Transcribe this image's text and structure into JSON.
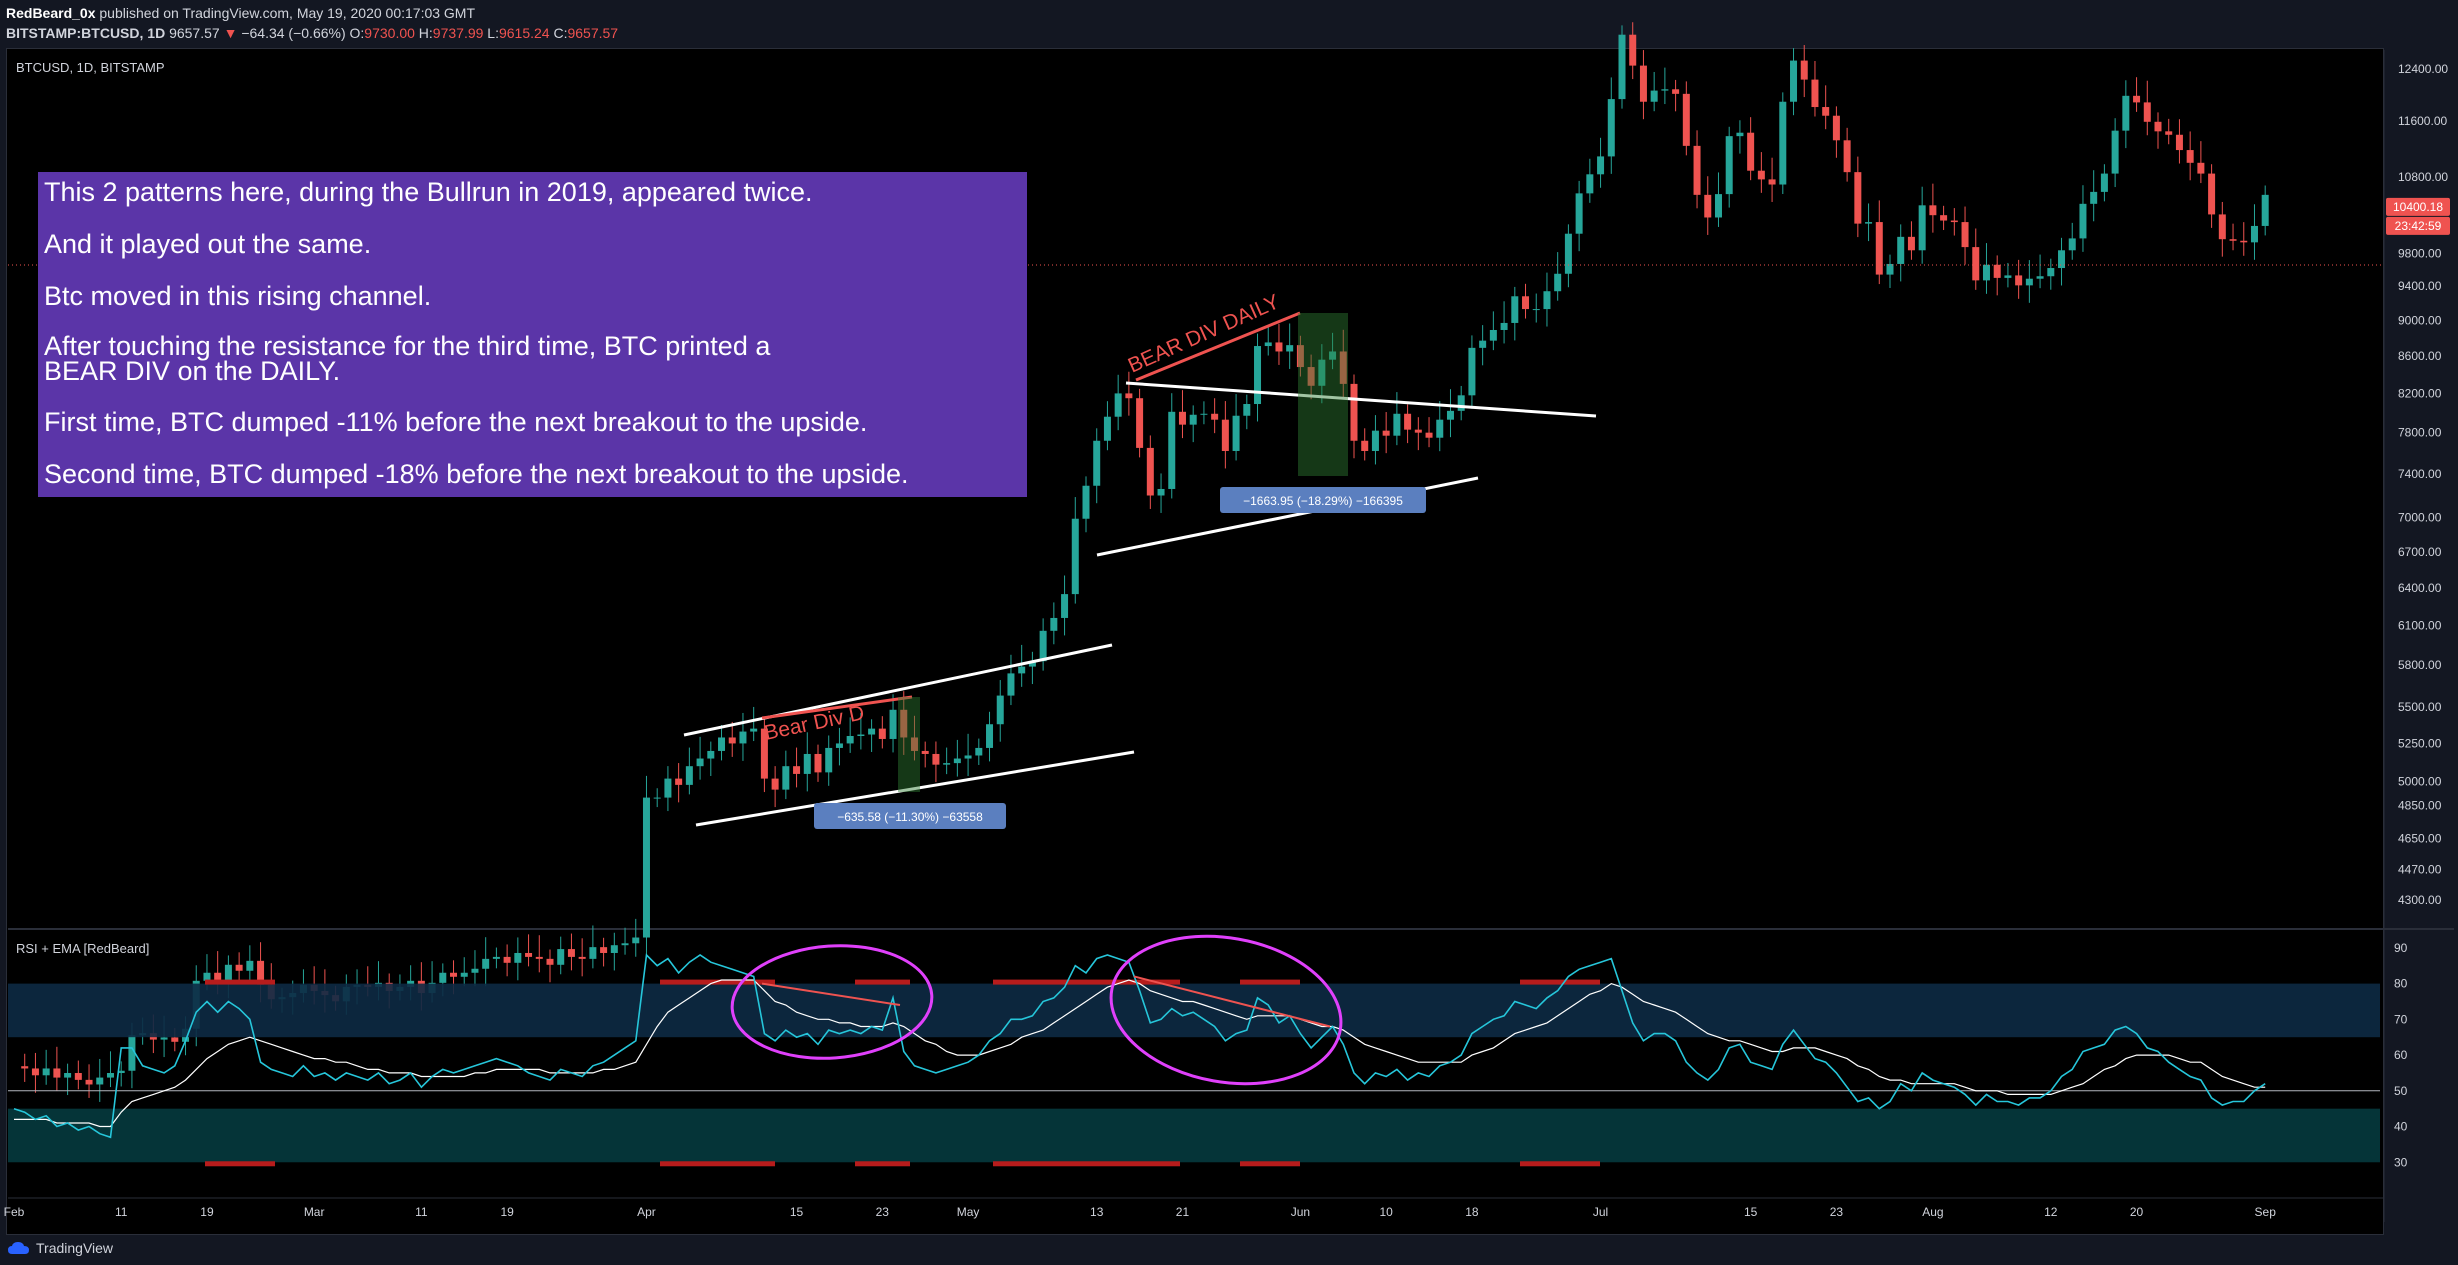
{
  "header": {
    "author": "RedBeard_0x",
    "published_text": "published on TradingView.com, May 19, 2020 00:17:03 GMT",
    "symbol": "BITSTAMP:BTCUSD, 1D",
    "last": "9657.57",
    "change": "−64.34 (−0.66%)",
    "o_label": "O:",
    "o": "9730.00",
    "h_label": "H:",
    "h": "9737.99",
    "l_label": "L:",
    "l": "9615.24",
    "c_label": "C:",
    "c": "9657.57"
  },
  "pane_labels": {
    "main": "BTCUSD, 1D, BITSTAMP",
    "rsi": "RSI + EMA [RedBeard]"
  },
  "note_lines": [
    "This 2 patterns here, during the Bullrun in 2019, appeared twice.",
    "And it played out the same.",
    "Btc moved in this rising channel.",
    "After touching the resistance for the third time, BTC printed a\nBEAR DIV on the DAILY.",
    "First time, BTC dumped -11% before the next breakout to the upside.",
    "Second time, BTC dumped -18% before the next breakout to the upside."
  ],
  "annotations": {
    "bear_div_1": "Bear Div D",
    "bear_div_2": "BEAR DIV DAILY",
    "measure_1": "−635.58 (−11.30%) −63558",
    "measure_2": "−1663.95 (−18.29%) −166395"
  },
  "price_badges": {
    "current_price": "10400.18",
    "countdown": "23:42:59"
  },
  "footer": {
    "brand": "TradingView"
  },
  "colors": {
    "up": "#26a69a",
    "down": "#ef5350",
    "note_bg": "#5b35a8",
    "rsi_line": "#26c6da",
    "ema_line": "#ffffff",
    "highlight": "#e040fb",
    "measure_bg": "#5b7fbf"
  },
  "chart_data": [
    {
      "type": "candlestick",
      "title": "BTCUSD, 1D, BITSTAMP",
      "y_scale": "log",
      "ylim": [
        4150,
        12700
      ],
      "y_ticks": [
        12400,
        11600,
        10800,
        10400,
        9800,
        9400,
        9000,
        8600,
        8200,
        7800,
        7400,
        7000,
        6700,
        6400,
        6100,
        5800,
        5500,
        5250,
        5000,
        4850,
        4650,
        4470,
        4300
      ],
      "x_tick_labels": [
        "Feb",
        "11",
        "19",
        "Mar",
        "11",
        "19",
        "Apr",
        "15",
        "23",
        "May",
        "13",
        "21",
        "Jun",
        "10",
        "18",
        "Jul",
        "15",
        "23",
        "Aug",
        "12",
        "20",
        "Sep"
      ],
      "x_tick_days": [
        0,
        10,
        18,
        28,
        38,
        46,
        59,
        73,
        81,
        89,
        101,
        109,
        120,
        128,
        136,
        148,
        162,
        170,
        179,
        190,
        198,
        210
      ],
      "days": 221,
      "closes": [
        3480,
        3470,
        3440,
        3470,
        3430,
        3450,
        3420,
        3400,
        3430,
        3450,
        3460,
        3620,
        3630,
        3600,
        3610,
        3590,
        3650,
        3880,
        3920,
        3880,
        3960,
        3930,
        3980,
        3860,
        3790,
        3800,
        3820,
        3860,
        3830,
        3810,
        3780,
        3850,
        3860,
        3850,
        3870,
        3830,
        3850,
        3880,
        3820,
        3870,
        3920,
        3900,
        3920,
        3940,
        3990,
        4000,
        3970,
        4020,
        4000,
        3990,
        3960,
        4040,
        4000,
        3990,
        4050,
        4020,
        4060,
        4070,
        4100,
        4900,
        4900,
        5020,
        4980,
        5100,
        5150,
        5200,
        5290,
        5250,
        5330,
        5350,
        5020,
        4950,
        5100,
        5050,
        5180,
        5060,
        5220,
        5250,
        5300,
        5310,
        5350,
        5280,
        5480,
        5290,
        5200,
        5180,
        5110,
        5120,
        5150,
        5170,
        5220,
        5380,
        5580,
        5740,
        5790,
        5830,
        6060,
        6160,
        6350,
        6990,
        7290,
        7720,
        7960,
        8200,
        8150,
        7650,
        7200,
        7260,
        8010,
        7880,
        7980,
        7990,
        7930,
        7620,
        7970,
        8090,
        8710,
        8750,
        8650,
        8720,
        8480,
        8280,
        8560,
        8650,
        8300,
        7720,
        7620,
        7820,
        7770,
        7990,
        7830,
        7800,
        7750,
        7930,
        8020,
        8180,
        8690,
        8770,
        8890,
        8970,
        9280,
        9130,
        9130,
        9340,
        9550,
        10050,
        10580,
        10840,
        11090,
        11930,
        12950,
        12450,
        11890,
        12060,
        12080,
        12010,
        11240,
        10560,
        10260,
        10570,
        11380,
        11430,
        10890,
        10770,
        10700,
        11890,
        12530,
        12230,
        11810,
        11680,
        11320,
        10870,
        10180,
        10200,
        9540,
        9670,
        10010,
        9840,
        10420,
        10290,
        10220,
        10200,
        9880,
        9470,
        9660,
        9500,
        9530,
        9410,
        9490,
        9520,
        9620,
        9840,
        9990,
        10440,
        10600,
        10850,
        11460,
        11980,
        11880,
        11590,
        11450,
        11400,
        11180,
        11000,
        10850,
        10300,
        9980,
        9960,
        9940,
        10150,
        10560
      ]
    },
    {
      "type": "line",
      "title": "RSI + EMA [RedBeard]",
      "ylim": [
        20,
        95
      ],
      "y_ticks": [
        90,
        80,
        70,
        60,
        50,
        40,
        30
      ],
      "bands": {
        "upper": [
          65,
          80
        ],
        "lower": [
          30,
          45
        ]
      },
      "series": [
        {
          "values": [
            45,
            44,
            42,
            43,
            40,
            41,
            39,
            40,
            38,
            37,
            62,
            62,
            57,
            56,
            55,
            57,
            64,
            72,
            75,
            72,
            75,
            73,
            70,
            58,
            56,
            55,
            54,
            57,
            54,
            55,
            53,
            55,
            54,
            53,
            55,
            52,
            53,
            55,
            51,
            54,
            56,
            55,
            56,
            57,
            58,
            59,
            58,
            57,
            55,
            54,
            53,
            56,
            55,
            54,
            57,
            58,
            60,
            62,
            64,
            88,
            85,
            87,
            83,
            86,
            88,
            86,
            85,
            84,
            83,
            82,
            66,
            64,
            67,
            65,
            66,
            63,
            67,
            66,
            67,
            66,
            68,
            67,
            76,
            61,
            57,
            56,
            55,
            56,
            57,
            58,
            60,
            64,
            66,
            70,
            70,
            71,
            75,
            76,
            79,
            85,
            83,
            87,
            88,
            87,
            86,
            78,
            69,
            70,
            73,
            71,
            72,
            70,
            68,
            64,
            66,
            67,
            76,
            74,
            69,
            71,
            66,
            62,
            65,
            68,
            63,
            55,
            52,
            55,
            54,
            56,
            53,
            55,
            54,
            57,
            58,
            60,
            66,
            68,
            70,
            71,
            75,
            74,
            73,
            76,
            78,
            82,
            84,
            85,
            86,
            87,
            78,
            69,
            64,
            66,
            66,
            64,
            58,
            55,
            53,
            56,
            62,
            63,
            58,
            57,
            56,
            63,
            67,
            63,
            59,
            58,
            55,
            51,
            47,
            48,
            45,
            47,
            52,
            50,
            55,
            53,
            52,
            51,
            49,
            46,
            49,
            47,
            47,
            46,
            48,
            48,
            50,
            54,
            56,
            61,
            62,
            63,
            67,
            68,
            66,
            62,
            61,
            58,
            56,
            54,
            53,
            48,
            46,
            47,
            47,
            50,
            52
          ]
        },
        {
          "values": [
            42,
            42,
            42,
            42,
            41,
            41,
            41,
            41,
            40,
            40,
            44,
            47,
            48,
            49,
            50,
            51,
            53,
            56,
            59,
            61,
            63,
            64,
            65,
            64,
            63,
            62,
            61,
            60,
            59,
            59,
            58,
            58,
            57,
            56,
            56,
            55,
            55,
            55,
            54,
            54,
            54,
            54,
            54,
            55,
            55,
            56,
            56,
            56,
            56,
            56,
            55,
            55,
            55,
            55,
            55,
            56,
            56,
            57,
            58,
            63,
            68,
            72,
            74,
            76,
            78,
            80,
            81,
            81,
            81,
            81,
            78,
            75,
            74,
            72,
            71,
            70,
            70,
            69,
            69,
            68,
            68,
            68,
            69,
            68,
            66,
            64,
            63,
            61,
            60,
            60,
            60,
            61,
            62,
            63,
            65,
            66,
            67,
            69,
            71,
            73,
            75,
            77,
            79,
            80,
            81,
            80,
            78,
            77,
            76,
            75,
            75,
            74,
            73,
            72,
            71,
            70,
            71,
            71,
            71,
            71,
            70,
            69,
            68,
            68,
            67,
            65,
            63,
            62,
            61,
            60,
            59,
            58,
            58,
            58,
            58,
            58,
            60,
            61,
            62,
            64,
            66,
            67,
            68,
            69,
            71,
            73,
            75,
            77,
            78,
            80,
            79,
            77,
            75,
            74,
            73,
            72,
            70,
            68,
            66,
            65,
            64,
            64,
            63,
            62,
            61,
            61,
            62,
            62,
            62,
            61,
            60,
            59,
            57,
            56,
            54,
            53,
            53,
            52,
            52,
            52,
            52,
            52,
            51,
            50,
            50,
            50,
            49,
            49,
            49,
            49,
            49,
            50,
            51,
            52,
            54,
            56,
            57,
            59,
            60,
            60,
            60,
            60,
            59,
            58,
            58,
            56,
            54,
            53,
            52,
            51,
            51
          ]
        }
      ]
    }
  ]
}
